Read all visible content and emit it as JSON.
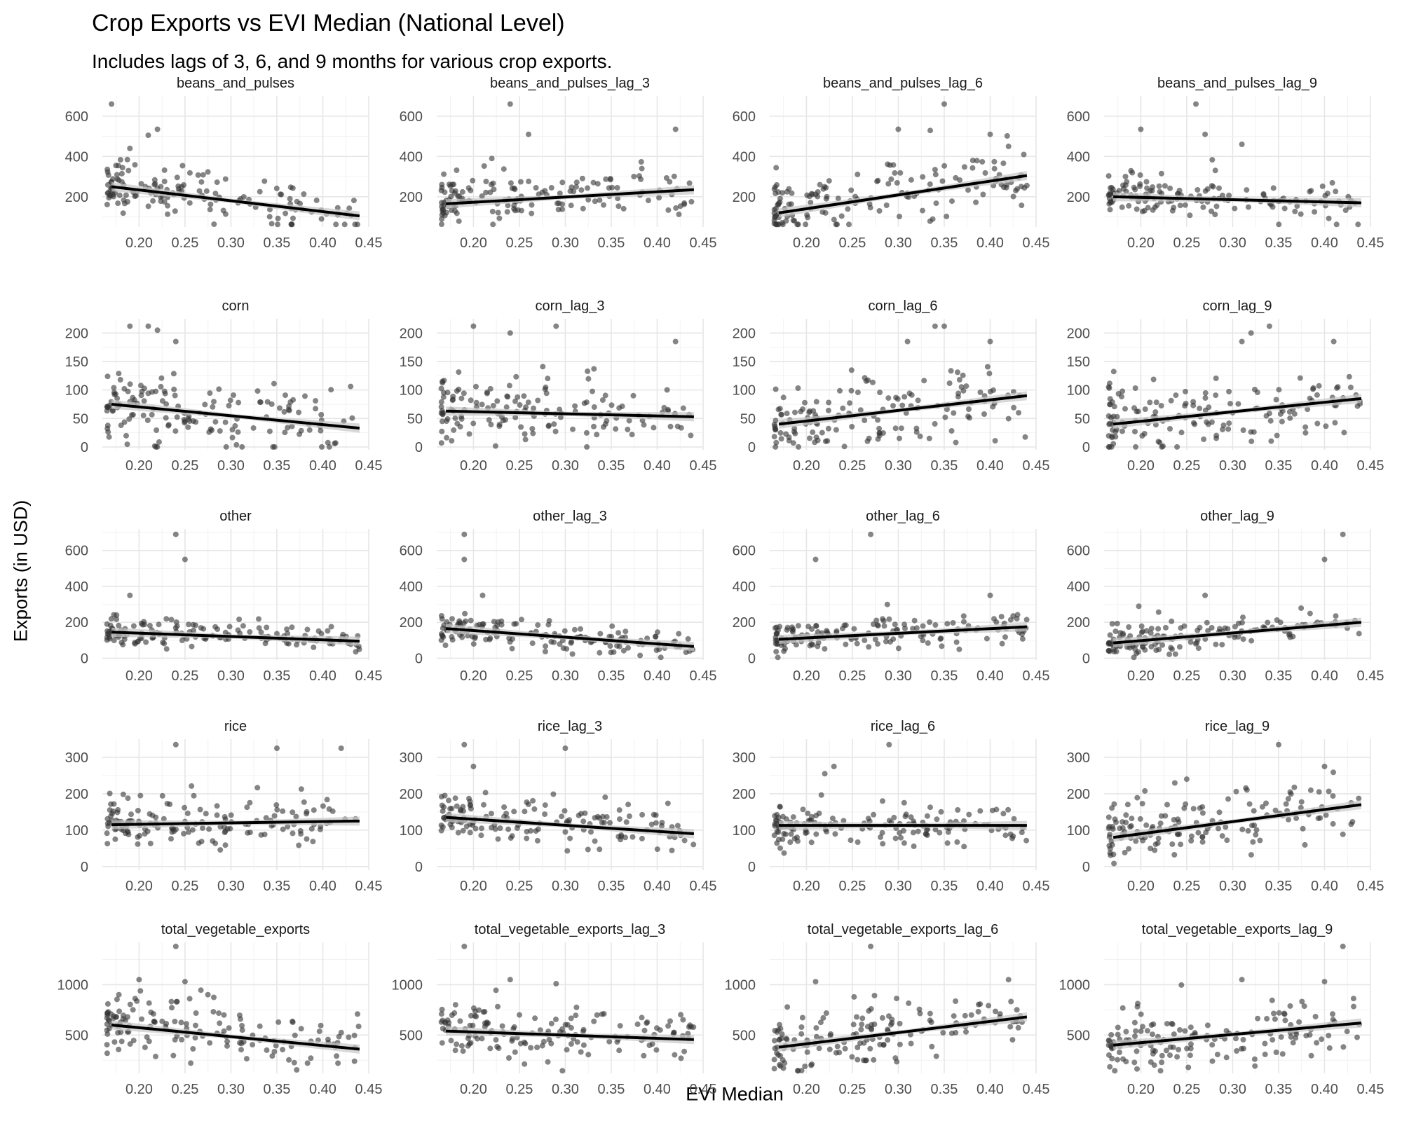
{
  "chart_data": {
    "type": "scatter",
    "title": "Crop Exports vs EVI Median (National Level)",
    "subtitle": "Includes lags of 3, 6, and 9 months for various crop exports.",
    "xlabel": "EVI Median",
    "ylabel": "Exports (in USD)",
    "xlim": [
      0.16,
      0.45
    ],
    "x_ticks": [
      "0.20",
      "0.25",
      "0.30",
      "0.35",
      "0.40",
      "0.45"
    ],
    "grid": true,
    "trend": "linear fit with confidence band",
    "colors": {
      "points": "#333333",
      "fit": "#000000",
      "band": "#c8c8c8",
      "grid": "#e6e6e6"
    },
    "rows": [
      {
        "ylim": [
          50,
          700
        ],
        "y_ticks": [
          200,
          400,
          600
        ]
      },
      {
        "ylim": [
          -5,
          225
        ],
        "y_ticks": [
          0,
          50,
          100,
          150,
          200
        ]
      },
      {
        "ylim": [
          -10,
          720
        ],
        "y_ticks": [
          0,
          200,
          400,
          600
        ]
      },
      {
        "ylim": [
          -10,
          350
        ],
        "y_ticks": [
          0,
          100,
          200,
          300
        ]
      },
      {
        "ylim": [
          120,
          1420
        ],
        "y_ticks": [
          500,
          1000
        ]
      }
    ],
    "panels": [
      {
        "name": "beans_and_pulses",
        "fit": [
          250,
          105
        ],
        "outliers": [
          [
            0.17,
            660
          ],
          [
            0.22,
            535
          ],
          [
            0.21,
            505
          ],
          [
            0.19,
            440
          ]
        ]
      },
      {
        "name": "beans_and_pulses_lag_3",
        "fit": [
          165,
          235
        ],
        "outliers": [
          [
            0.24,
            660
          ],
          [
            0.42,
            535
          ],
          [
            0.22,
            390
          ],
          [
            0.26,
            510
          ]
        ]
      },
      {
        "name": "beans_and_pulses_lag_6",
        "fit": [
          120,
          305
        ],
        "outliers": [
          [
            0.35,
            660
          ],
          [
            0.3,
            535
          ],
          [
            0.4,
            510
          ],
          [
            0.42,
            450
          ]
        ]
      },
      {
        "name": "beans_and_pulses_lag_9",
        "fit": [
          200,
          170
        ],
        "outliers": [
          [
            0.26,
            660
          ],
          [
            0.2,
            535
          ],
          [
            0.27,
            510
          ],
          [
            0.31,
            460
          ]
        ]
      },
      {
        "name": "corn",
        "fit": [
          75,
          33
        ],
        "outliers": [
          [
            0.19,
            212
          ],
          [
            0.21,
            212
          ],
          [
            0.22,
            205
          ],
          [
            0.24,
            185
          ]
        ]
      },
      {
        "name": "corn_lag_3",
        "fit": [
          63,
          53
        ],
        "outliers": [
          [
            0.2,
            212
          ],
          [
            0.29,
            212
          ],
          [
            0.24,
            200
          ],
          [
            0.42,
            185
          ]
        ]
      },
      {
        "name": "corn_lag_6",
        "fit": [
          40,
          90
        ],
        "outliers": [
          [
            0.34,
            212
          ],
          [
            0.35,
            212
          ],
          [
            0.31,
            185
          ],
          [
            0.4,
            185
          ]
        ]
      },
      {
        "name": "corn_lag_9",
        "fit": [
          40,
          85
        ],
        "outliers": [
          [
            0.34,
            212
          ],
          [
            0.32,
            200
          ],
          [
            0.31,
            185
          ],
          [
            0.41,
            185
          ]
        ]
      },
      {
        "name": "other",
        "fit": [
          145,
          95
        ],
        "outliers": [
          [
            0.24,
            690
          ],
          [
            0.25,
            550
          ],
          [
            0.19,
            350
          ]
        ]
      },
      {
        "name": "other_lag_3",
        "fit": [
          165,
          65
        ],
        "outliers": [
          [
            0.19,
            690
          ],
          [
            0.19,
            550
          ],
          [
            0.21,
            350
          ]
        ]
      },
      {
        "name": "other_lag_6",
        "fit": [
          105,
          175
        ],
        "outliers": [
          [
            0.27,
            690
          ],
          [
            0.21,
            550
          ],
          [
            0.4,
            350
          ]
        ]
      },
      {
        "name": "other_lag_9",
        "fit": [
          85,
          200
        ],
        "outliers": [
          [
            0.42,
            690
          ],
          [
            0.4,
            550
          ],
          [
            0.27,
            350
          ]
        ]
      },
      {
        "name": "rice",
        "fit": [
          115,
          125
        ],
        "outliers": [
          [
            0.24,
            335
          ],
          [
            0.35,
            325
          ],
          [
            0.42,
            325
          ]
        ]
      },
      {
        "name": "rice_lag_3",
        "fit": [
          135,
          90
        ],
        "outliers": [
          [
            0.19,
            335
          ],
          [
            0.3,
            325
          ],
          [
            0.2,
            275
          ]
        ]
      },
      {
        "name": "rice_lag_6",
        "fit": [
          113,
          113
        ],
        "outliers": [
          [
            0.29,
            335
          ],
          [
            0.23,
            275
          ],
          [
            0.22,
            255
          ]
        ]
      },
      {
        "name": "rice_lag_9",
        "fit": [
          80,
          170
        ],
        "outliers": [
          [
            0.35,
            335
          ],
          [
            0.4,
            275
          ],
          [
            0.25,
            240
          ]
        ]
      },
      {
        "name": "total_vegetable_exports",
        "fit": [
          600,
          360
        ],
        "outliers": [
          [
            0.24,
            1380
          ],
          [
            0.2,
            1050
          ],
          [
            0.25,
            1030
          ]
        ]
      },
      {
        "name": "total_vegetable_exports_lag_3",
        "fit": [
          540,
          455
        ],
        "outliers": [
          [
            0.19,
            1380
          ],
          [
            0.24,
            1050
          ],
          [
            0.29,
            1010
          ]
        ]
      },
      {
        "name": "total_vegetable_exports_lag_6",
        "fit": [
          380,
          680
        ],
        "outliers": [
          [
            0.27,
            1380
          ],
          [
            0.42,
            1050
          ],
          [
            0.21,
            1030
          ]
        ]
      },
      {
        "name": "total_vegetable_exports_lag_9",
        "fit": [
          400,
          620
        ],
        "outliers": [
          [
            0.42,
            1380
          ],
          [
            0.31,
            1050
          ],
          [
            0.4,
            1030
          ]
        ]
      }
    ]
  }
}
